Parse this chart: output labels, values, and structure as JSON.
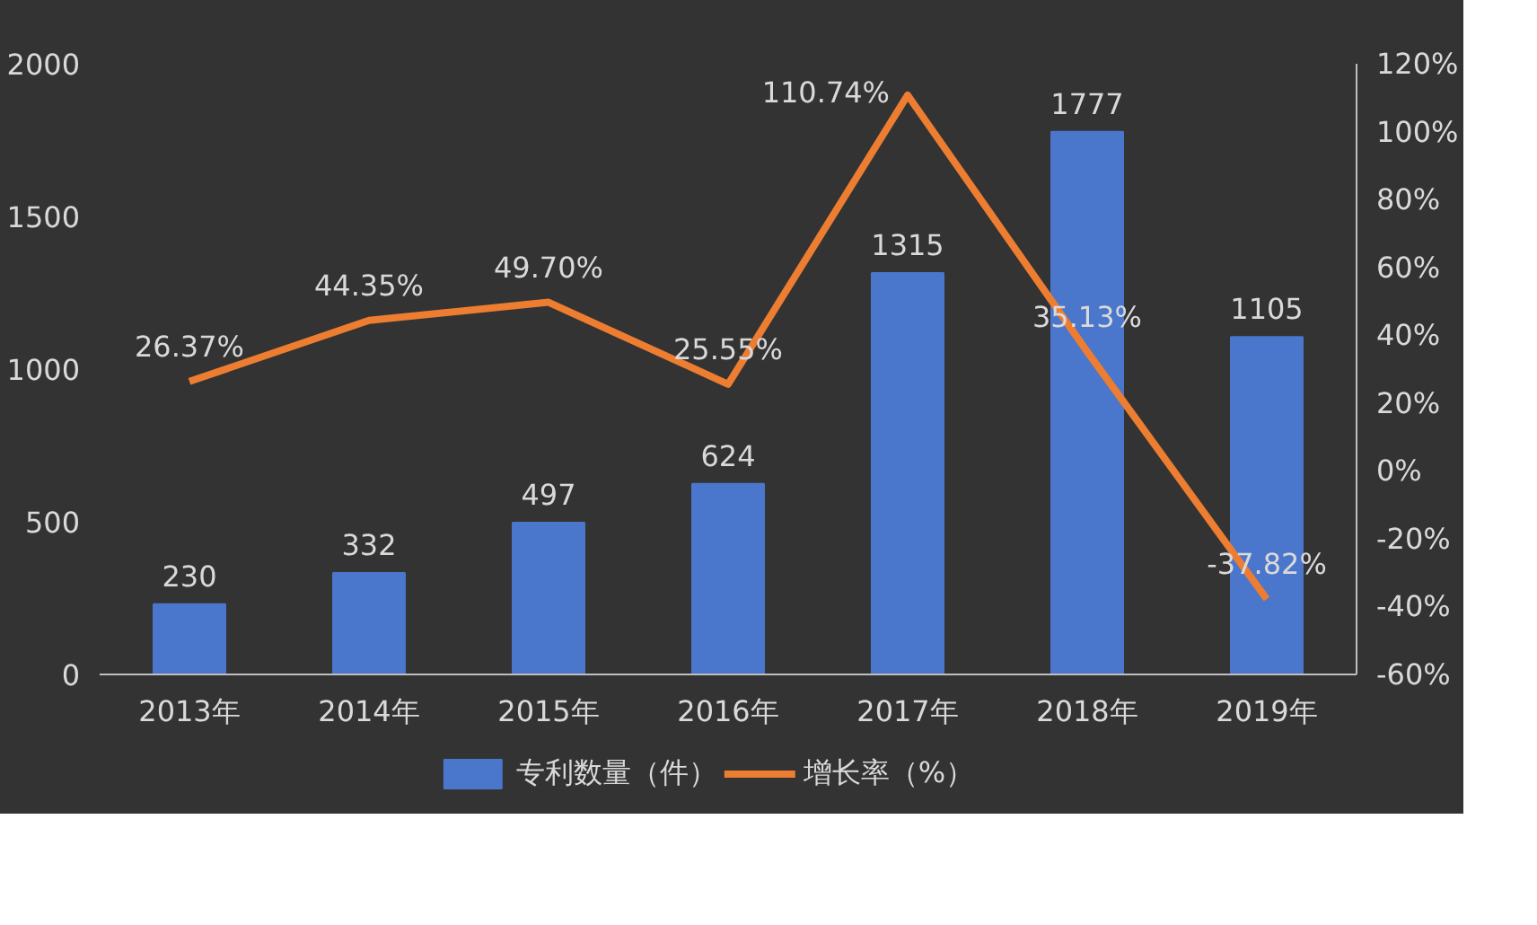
{
  "chart_data": {
    "type": "bar",
    "categories": [
      "2013年",
      "2014年",
      "2015年",
      "2016年",
      "2017年",
      "2018年",
      "2019年"
    ],
    "series": [
      {
        "name": "专利数量（件）",
        "color": "#4a76cc",
        "values": [
          230,
          332,
          497,
          624,
          1315,
          1777,
          1105
        ],
        "value_labels": [
          "230",
          "332",
          "497",
          "624",
          "1315",
          "1777",
          "1105"
        ]
      },
      {
        "name": "增长率（%）",
        "type": "line",
        "axis": "y2",
        "color": "#ed7d31",
        "values": [
          26.37,
          44.35,
          49.7,
          25.55,
          110.74,
          35.13,
          -37.82
        ],
        "value_labels": [
          "26.37%",
          "44.35%",
          "49.70%",
          "25.55%",
          "110.74%",
          "35.13%",
          "-37.82%"
        ]
      }
    ],
    "ylim": [
      0,
      2000
    ],
    "yticks": [
      0,
      500,
      1000,
      1500,
      2000
    ],
    "y2lim": [
      -60,
      120
    ],
    "y2ticks": [
      {
        "value": -60,
        "label": "-60%"
      },
      {
        "value": -40,
        "label": "-40%"
      },
      {
        "value": -20,
        "label": "-20%"
      },
      {
        "value": 0,
        "label": "0%"
      },
      {
        "value": 20,
        "label": "20%"
      },
      {
        "value": 40,
        "label": "40%"
      },
      {
        "value": 60,
        "label": "60%"
      },
      {
        "value": 80,
        "label": "80%"
      },
      {
        "value": 100,
        "label": "100%"
      },
      {
        "value": 120,
        "label": "120%"
      }
    ],
    "legend": "bottom",
    "marker": "none",
    "line_style": "solid"
  }
}
